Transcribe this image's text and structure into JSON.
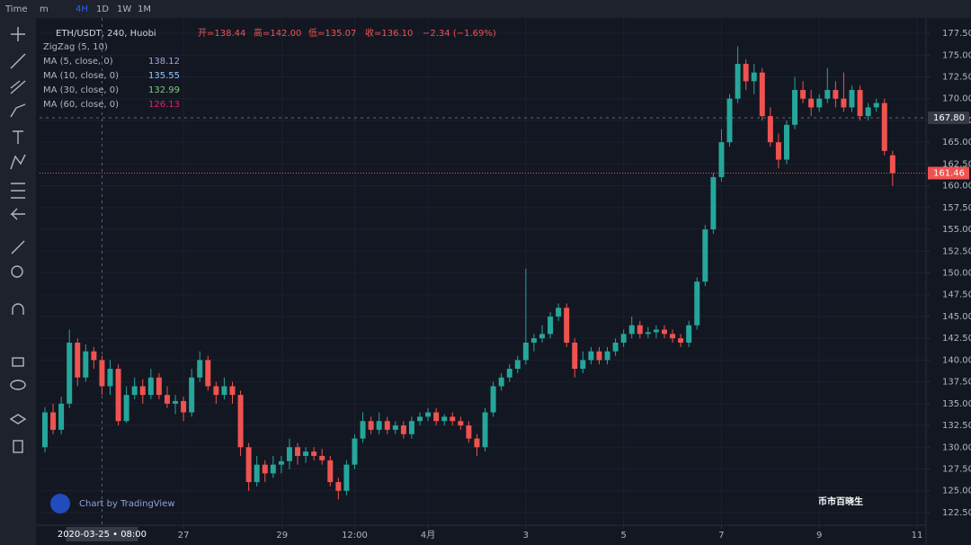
{
  "toolbar": {
    "items": [
      "Time",
      "m",
      "4H",
      "1D",
      "1W",
      "1M"
    ]
  },
  "legend": {
    "symbol": "ETH/USDT, 240, Huobi",
    "open": "开=138.44",
    "high": "高=142.00",
    "low": "低=135.07",
    "close": "收=136.10",
    "change": "−2.34 (−1.69%)",
    "indicators": [
      {
        "name": "ZigZag (5, 10)"
      },
      {
        "name": "MA (5, close, 0)",
        "value": "138.12",
        "color": "#b39ddb"
      },
      {
        "name": "MA (10, close, 0)",
        "value": "135.55",
        "color": "#90caf9"
      },
      {
        "name": "MA (30, close, 0)",
        "value": "132.99",
        "color": "#81c784"
      },
      {
        "name": "MA (60, close, 0)",
        "value": "126.13",
        "color": "#e91e63"
      }
    ]
  },
  "watermark": {
    "tradingview": "Chart by TradingView",
    "author": "币市百晓生"
  },
  "chart_data": {
    "type": "candlestick",
    "up_color": "#26a69a",
    "down_color": "#ef5350",
    "candles": [
      [
        130,
        134.6,
        129.4,
        134
      ],
      [
        134,
        135,
        131.5,
        132
      ],
      [
        132,
        135.8,
        131.5,
        135
      ],
      [
        135,
        143.5,
        134.5,
        142
      ],
      [
        142,
        142.5,
        137,
        138
      ],
      [
        138,
        141.8,
        137.5,
        141
      ],
      [
        141,
        141.5,
        139,
        140
      ],
      [
        140,
        140.5,
        136,
        137
      ],
      [
        137,
        140,
        136,
        139
      ],
      [
        139,
        139.5,
        132.5,
        133
      ],
      [
        133,
        137,
        132.8,
        136
      ],
      [
        136,
        138,
        135.5,
        137
      ],
      [
        137,
        137.8,
        135,
        136
      ],
      [
        136,
        139,
        135.5,
        138
      ],
      [
        138,
        138.5,
        135.5,
        136
      ],
      [
        136,
        137,
        134.5,
        135
      ],
      [
        135,
        136,
        133.8,
        135.3
      ],
      [
        135.3,
        135.8,
        133,
        134
      ],
      [
        134,
        139,
        133.5,
        138
      ],
      [
        138,
        141,
        137.5,
        140
      ],
      [
        140,
        140.5,
        136.5,
        137
      ],
      [
        137,
        137.5,
        135,
        136
      ],
      [
        136,
        138,
        135.5,
        137
      ],
      [
        137,
        137.5,
        135,
        136
      ],
      [
        136,
        136.5,
        129,
        130
      ],
      [
        130,
        130.5,
        125,
        126
      ],
      [
        126,
        129,
        125.5,
        128
      ],
      [
        128,
        128.5,
        126,
        127
      ],
      [
        127,
        129,
        126.5,
        128
      ],
      [
        128,
        129,
        127,
        128.4
      ],
      [
        128.4,
        131,
        127.5,
        130
      ],
      [
        130,
        130.5,
        128,
        129
      ],
      [
        129,
        130,
        128.2,
        129.5
      ],
      [
        129.5,
        130,
        128.5,
        129
      ],
      [
        129,
        129.8,
        128,
        128.5
      ],
      [
        128.5,
        129,
        125.5,
        126
      ],
      [
        126,
        126.5,
        124,
        125
      ],
      [
        125,
        128.5,
        124.5,
        128
      ],
      [
        128,
        131.5,
        127.5,
        131
      ],
      [
        131,
        134,
        130.5,
        133
      ],
      [
        133,
        133.5,
        131.5,
        132
      ],
      [
        132,
        134,
        131.5,
        133
      ],
      [
        133,
        133.5,
        131.5,
        132
      ],
      [
        132,
        133,
        131.5,
        132.5
      ],
      [
        132.5,
        133,
        131,
        131.5
      ],
      [
        131.5,
        133.5,
        131,
        133
      ],
      [
        133,
        134,
        132.5,
        133.5
      ],
      [
        133.5,
        134.5,
        133,
        134
      ],
      [
        134,
        134.5,
        132.5,
        133
      ],
      [
        133,
        133.8,
        132.5,
        133.5
      ],
      [
        133.5,
        134,
        132.5,
        133
      ],
      [
        133,
        133.5,
        132,
        132.5
      ],
      [
        132.5,
        133,
        130.5,
        131
      ],
      [
        131,
        131.5,
        129,
        130
      ],
      [
        130,
        134.5,
        129.5,
        134
      ],
      [
        134,
        137.5,
        133.5,
        137
      ],
      [
        137,
        138.5,
        136.5,
        138
      ],
      [
        138,
        139.5,
        137.5,
        139
      ],
      [
        139,
        140.5,
        138.5,
        140
      ],
      [
        140,
        150.5,
        139.5,
        142
      ],
      [
        142,
        143,
        141,
        142.5
      ],
      [
        142.5,
        144,
        142,
        143
      ],
      [
        143,
        145.5,
        142.5,
        145
      ],
      [
        145,
        146.5,
        144.5,
        146
      ],
      [
        146,
        146.5,
        141.5,
        142
      ],
      [
        142,
        142.5,
        138,
        139
      ],
      [
        139,
        141,
        138.5,
        140
      ],
      [
        140,
        141.5,
        139.5,
        141
      ],
      [
        141,
        141.5,
        139.5,
        140
      ],
      [
        140,
        141.5,
        139.5,
        141
      ],
      [
        141,
        142.5,
        140.5,
        142
      ],
      [
        142,
        143.5,
        141.5,
        143
      ],
      [
        143,
        145,
        142.5,
        144
      ],
      [
        144,
        144.5,
        142.5,
        143
      ],
      [
        143,
        143.8,
        142.5,
        143.2
      ],
      [
        143.2,
        144,
        142.5,
        143.5
      ],
      [
        143.5,
        144,
        142.5,
        143
      ],
      [
        143,
        143.5,
        142,
        142.5
      ],
      [
        142.5,
        143,
        141.5,
        142
      ],
      [
        142,
        144.5,
        141.5,
        144
      ],
      [
        144,
        149.5,
        143.5,
        149
      ],
      [
        149,
        155.5,
        148.5,
        155
      ],
      [
        155,
        161.5,
        154.5,
        161
      ],
      [
        161,
        166.5,
        160.5,
        165
      ],
      [
        165,
        170.5,
        164.5,
        170
      ],
      [
        170,
        176,
        169.5,
        174
      ],
      [
        174,
        174.5,
        171,
        172
      ],
      [
        172,
        174,
        170.5,
        173
      ],
      [
        173,
        173.5,
        167.5,
        168
      ],
      [
        168,
        169,
        164.5,
        165
      ],
      [
        165,
        166,
        162,
        163
      ],
      [
        163,
        167.5,
        162.5,
        167
      ],
      [
        167,
        172.5,
        166.5,
        171
      ],
      [
        171,
        172,
        169.5,
        170
      ],
      [
        170,
        171,
        168,
        169
      ],
      [
        169,
        170.5,
        168.5,
        170
      ],
      [
        170,
        173.5,
        169.5,
        171
      ],
      [
        171,
        172,
        169,
        170
      ],
      [
        170,
        173,
        168.5,
        169
      ],
      [
        169,
        171.5,
        168.5,
        171
      ],
      [
        171,
        171.5,
        167.5,
        168
      ],
      [
        168,
        169.5,
        167.5,
        169
      ],
      [
        169,
        170,
        168.5,
        169.5
      ],
      [
        169.5,
        170,
        163.5,
        164
      ],
      [
        163.5,
        164,
        160,
        161.46
      ]
    ],
    "xlim": [
      -0.66,
      108.1
    ],
    "ylim": [
      121.05,
      179.26
    ],
    "xticks": [
      {
        "value": 17,
        "label": "27"
      },
      {
        "value": 29.1,
        "label": "29"
      },
      {
        "value": 38,
        "label": "12:00"
      },
      {
        "value": 47,
        "label": "4月"
      },
      {
        "value": 59,
        "label": "3"
      },
      {
        "value": 71,
        "label": "5"
      },
      {
        "value": 83,
        "label": "7"
      },
      {
        "value": 95,
        "label": "9"
      },
      {
        "value": 107,
        "label": "11"
      }
    ],
    "yticks": [
      {
        "value": 122.5,
        "label": "122.50"
      },
      {
        "value": 125,
        "label": "125.00"
      },
      {
        "value": 127.5,
        "label": "127.50"
      },
      {
        "value": 130,
        "label": "130.00"
      },
      {
        "value": 132.5,
        "label": "132.50"
      },
      {
        "value": 135,
        "label": "135.00"
      },
      {
        "value": 137.5,
        "label": "137.50"
      },
      {
        "value": 140,
        "label": "140.00"
      },
      {
        "value": 142.5,
        "label": "142.50"
      },
      {
        "value": 145,
        "label": "145.00"
      },
      {
        "value": 147.5,
        "label": "147.50"
      },
      {
        "value": 150,
        "label": "150.00"
      },
      {
        "value": 152.5,
        "label": "152.50"
      },
      {
        "value": 155,
        "label": "155.00"
      },
      {
        "value": 157.5,
        "label": "157.50"
      },
      {
        "value": 160,
        "label": "160.00"
      },
      {
        "value": 162.5,
        "label": "162.50"
      },
      {
        "value": 165,
        "label": "165.00"
      },
      {
        "value": 167.5,
        "label": "167.50"
      },
      {
        "value": 170,
        "label": "170.00"
      },
      {
        "value": 172.5,
        "label": "172.50"
      },
      {
        "value": 175,
        "label": "175.00"
      },
      {
        "value": 177.5,
        "label": "177.50"
      }
    ],
    "grid": true,
    "crosshair": {
      "x": {
        "value": 7,
        "label": "2020-03-25 • 08:00"
      },
      "y": {
        "value": 167.8,
        "label": "167.80"
      }
    },
    "last_price": {
      "value": 161.46,
      "label": "161.46",
      "color": "#ef5350"
    }
  }
}
